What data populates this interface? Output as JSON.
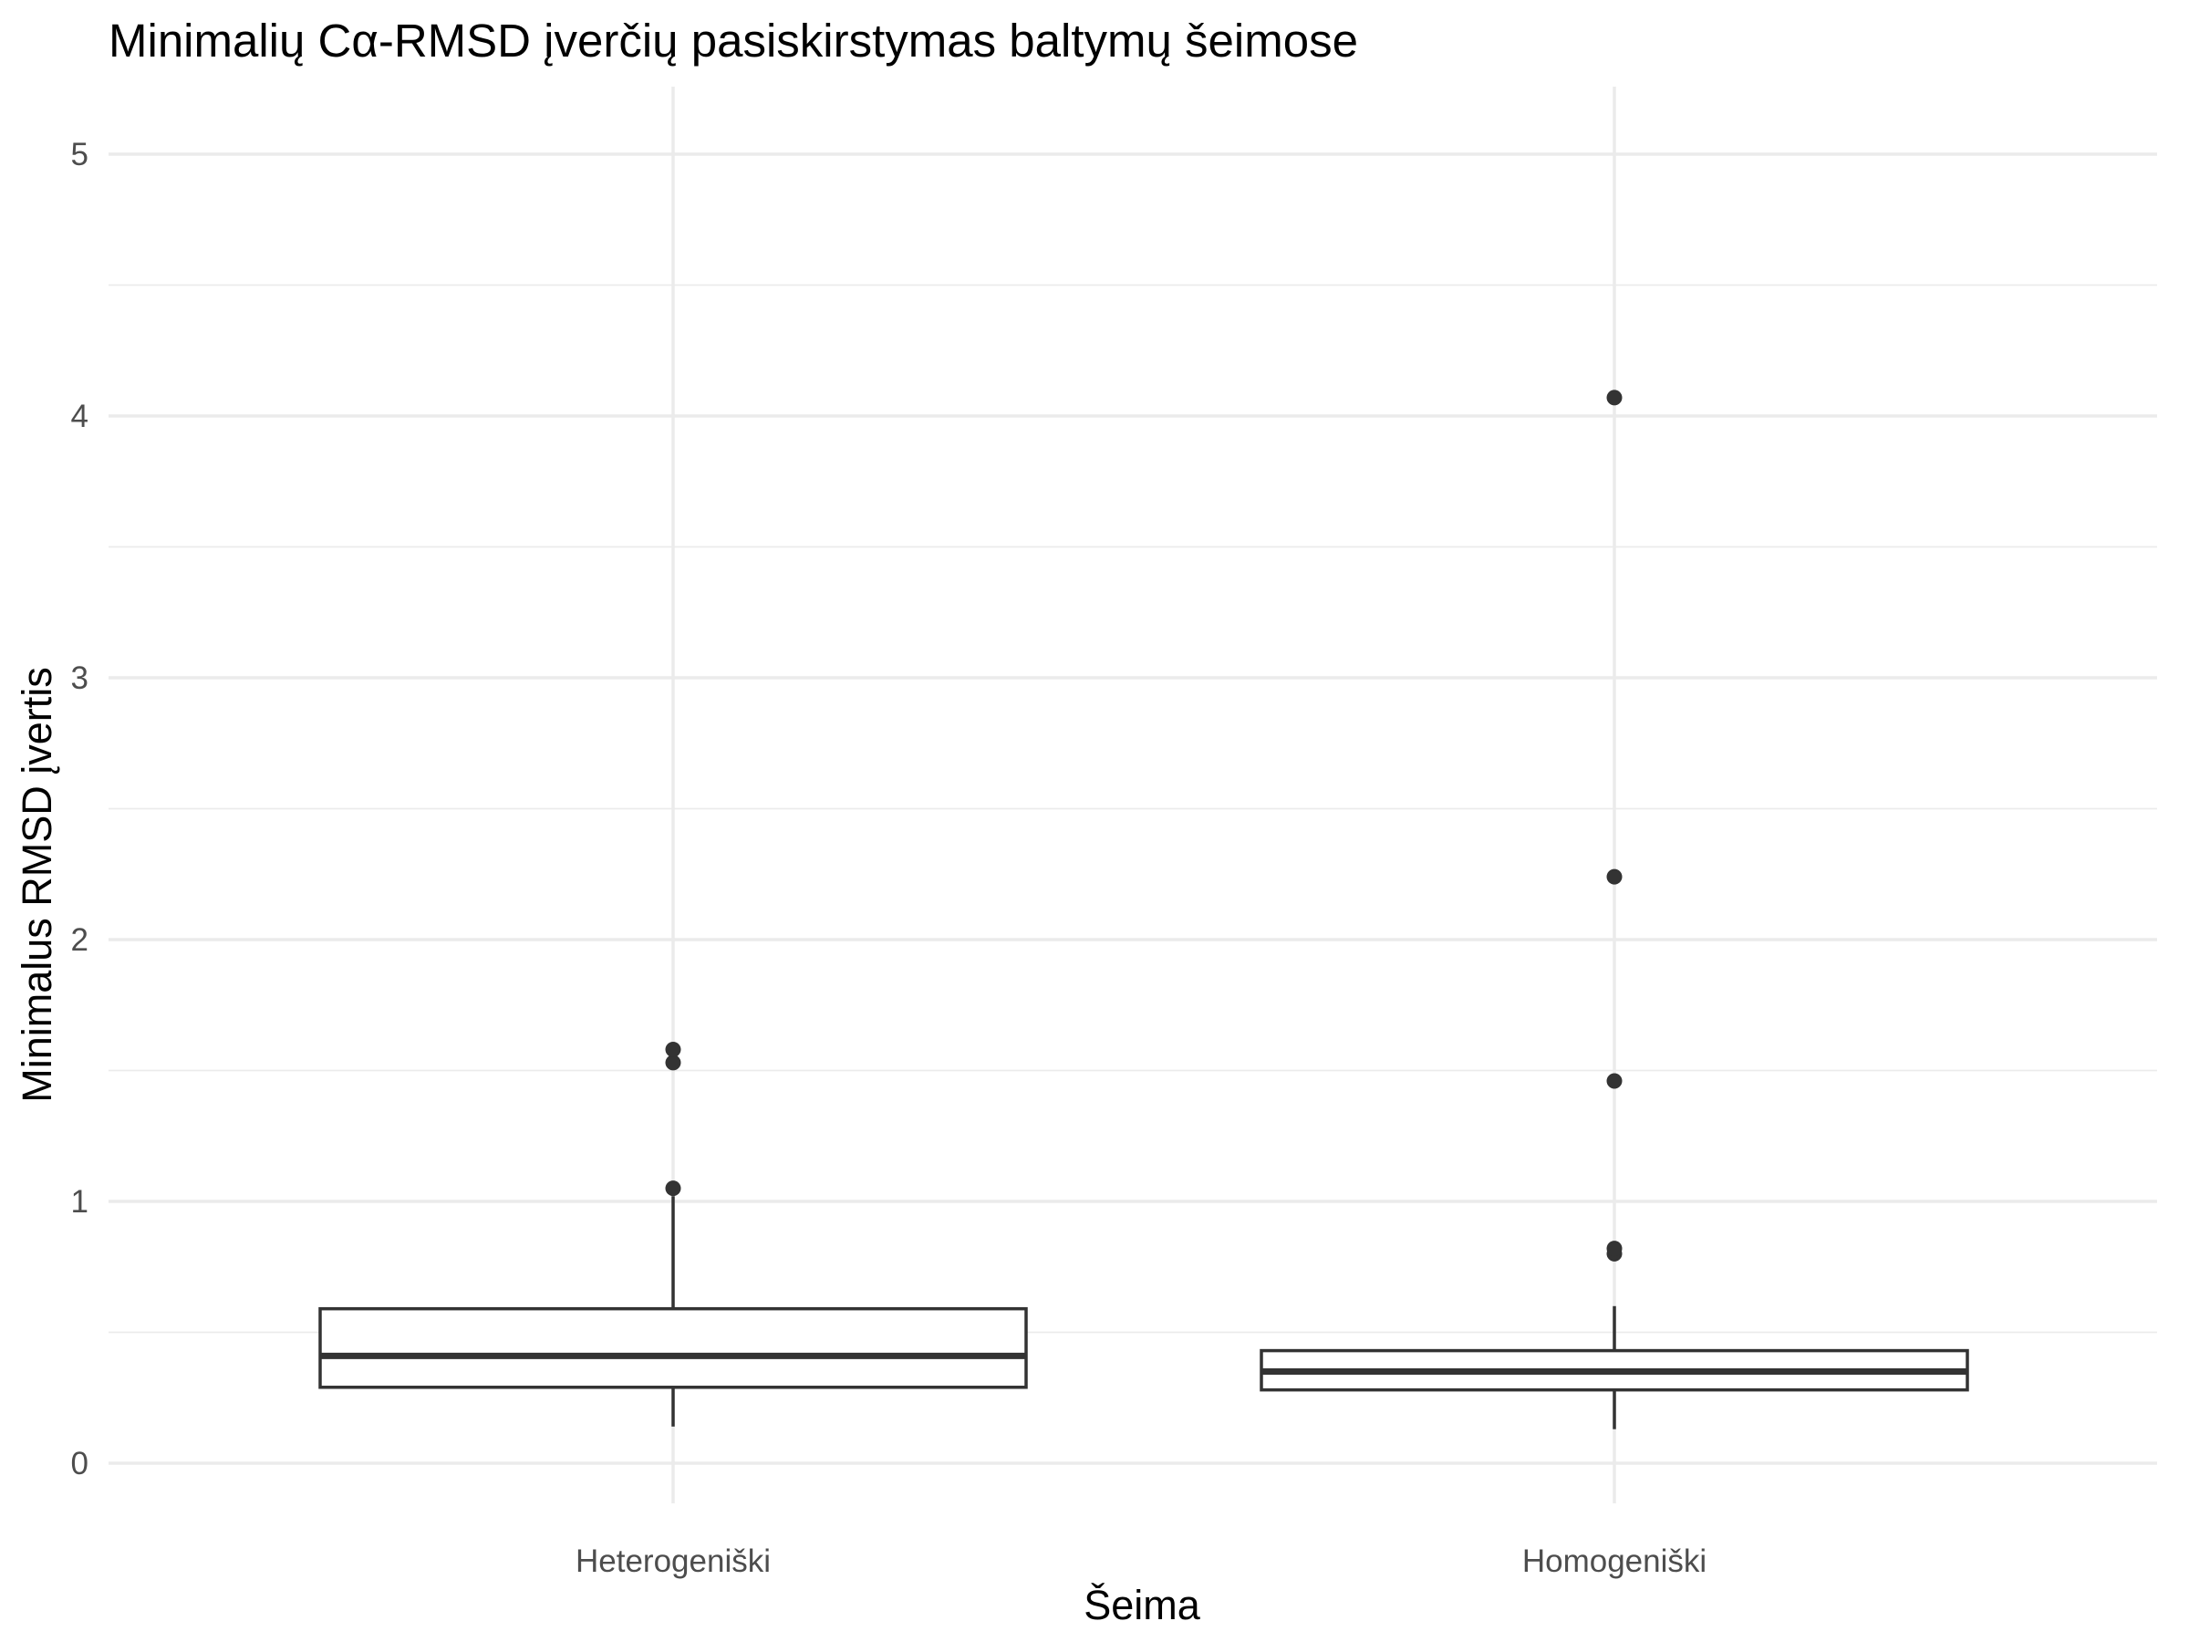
{
  "chart_data": {
    "type": "box",
    "title": "Minimalių Cα-RMSD įverčių pasiskirstymas baltymų šeimose",
    "xlabel": "Šeima",
    "ylabel": "Minimalus RMSD įvertis",
    "ylim": [
      -0.15,
      5.25
    ],
    "y_ticks": [
      0,
      1,
      2,
      3,
      4,
      5
    ],
    "y_tick_labels": [
      "0",
      "1",
      "2",
      "3",
      "4",
      "5"
    ],
    "categories": [
      "Heterogeniški",
      "Homogeniški"
    ],
    "grid": true,
    "boxes": [
      {
        "category": "Heterogeniški",
        "whisker_low": 0.14,
        "q1": 0.29,
        "median": 0.41,
        "q3": 0.59,
        "whisker_high": 1.02,
        "outliers": [
          1.05,
          1.53,
          1.58
        ]
      },
      {
        "category": "Homogeniški",
        "whisker_low": 0.13,
        "q1": 0.28,
        "median": 0.35,
        "q3": 0.43,
        "whisker_high": 0.6,
        "outliers": [
          0.8,
          0.82,
          1.46,
          2.24,
          4.07
        ]
      }
    ]
  }
}
